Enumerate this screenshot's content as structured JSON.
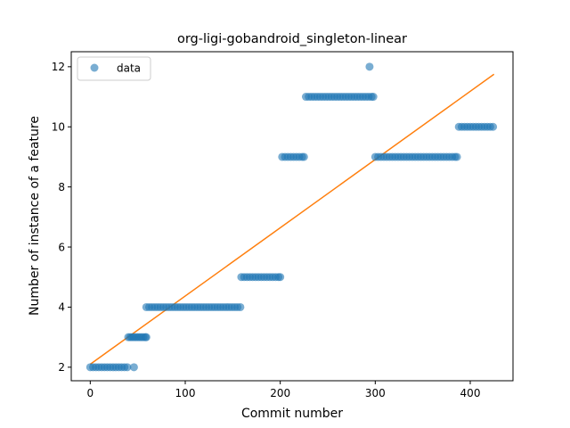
{
  "chart_data": {
    "type": "scatter",
    "title": "org-ligi-gobandroid_singleton-linear",
    "xlabel": "Commit number",
    "ylabel": "Number of instance of a feature",
    "xlim": [
      -20,
      445
    ],
    "ylim": [
      1.55,
      12.5
    ],
    "xticks": [
      0,
      100,
      200,
      300,
      400
    ],
    "yticks": [
      2,
      4,
      6,
      8,
      10,
      12
    ],
    "xtick_labels": [
      "0",
      "100",
      "200",
      "300",
      "400"
    ],
    "ytick_labels": [
      "2",
      "4",
      "6",
      "8",
      "10",
      "12"
    ],
    "legend": {
      "position": "top-left",
      "entries": [
        "data"
      ]
    },
    "colors": {
      "data": "#1f77b4",
      "fit": "#ff7f0e"
    },
    "series": [
      {
        "name": "data",
        "kind": "scatter",
        "points": [
          [
            0,
            2
          ],
          [
            3,
            2
          ],
          [
            6,
            2
          ],
          [
            9,
            2
          ],
          [
            12,
            2
          ],
          [
            15,
            2
          ],
          [
            18,
            2
          ],
          [
            21,
            2
          ],
          [
            24,
            2
          ],
          [
            27,
            2
          ],
          [
            30,
            2
          ],
          [
            33,
            2
          ],
          [
            36,
            2
          ],
          [
            39,
            2
          ],
          [
            40,
            3
          ],
          [
            42,
            3
          ],
          [
            44,
            3
          ],
          [
            46,
            3
          ],
          [
            46,
            2
          ],
          [
            48,
            3
          ],
          [
            50,
            3
          ],
          [
            52,
            3
          ],
          [
            54,
            3
          ],
          [
            56,
            3
          ],
          [
            58,
            3
          ],
          [
            59,
            3
          ],
          [
            59,
            4
          ],
          [
            62,
            4
          ],
          [
            65,
            4
          ],
          [
            68,
            4
          ],
          [
            71,
            4
          ],
          [
            74,
            4
          ],
          [
            77,
            4
          ],
          [
            80,
            4
          ],
          [
            83,
            4
          ],
          [
            86,
            4
          ],
          [
            89,
            4
          ],
          [
            92,
            4
          ],
          [
            95,
            4
          ],
          [
            98,
            4
          ],
          [
            101,
            4
          ],
          [
            104,
            4
          ],
          [
            107,
            4
          ],
          [
            110,
            4
          ],
          [
            113,
            4
          ],
          [
            116,
            4
          ],
          [
            119,
            4
          ],
          [
            122,
            4
          ],
          [
            125,
            4
          ],
          [
            128,
            4
          ],
          [
            131,
            4
          ],
          [
            134,
            4
          ],
          [
            137,
            4
          ],
          [
            140,
            4
          ],
          [
            143,
            4
          ],
          [
            146,
            4
          ],
          [
            149,
            4
          ],
          [
            152,
            4
          ],
          [
            155,
            4
          ],
          [
            158,
            4
          ],
          [
            159,
            5
          ],
          [
            162,
            5
          ],
          [
            165,
            5
          ],
          [
            168,
            5
          ],
          [
            171,
            5
          ],
          [
            174,
            5
          ],
          [
            177,
            5
          ],
          [
            180,
            5
          ],
          [
            183,
            5
          ],
          [
            186,
            5
          ],
          [
            189,
            5
          ],
          [
            192,
            5
          ],
          [
            195,
            5
          ],
          [
            198,
            5
          ],
          [
            200,
            5
          ],
          [
            202,
            9
          ],
          [
            205,
            9
          ],
          [
            208,
            9
          ],
          [
            211,
            9
          ],
          [
            214,
            9
          ],
          [
            217,
            9
          ],
          [
            220,
            9
          ],
          [
            223,
            9
          ],
          [
            225,
            9
          ],
          [
            227,
            11
          ],
          [
            230,
            11
          ],
          [
            233,
            11
          ],
          [
            236,
            11
          ],
          [
            239,
            11
          ],
          [
            242,
            11
          ],
          [
            245,
            11
          ],
          [
            248,
            11
          ],
          [
            251,
            11
          ],
          [
            254,
            11
          ],
          [
            257,
            11
          ],
          [
            260,
            11
          ],
          [
            263,
            11
          ],
          [
            266,
            11
          ],
          [
            269,
            11
          ],
          [
            272,
            11
          ],
          [
            275,
            11
          ],
          [
            278,
            11
          ],
          [
            281,
            11
          ],
          [
            284,
            11
          ],
          [
            287,
            11
          ],
          [
            290,
            11
          ],
          [
            293,
            11
          ],
          [
            296,
            11
          ],
          [
            298,
            11
          ],
          [
            294,
            12
          ],
          [
            300,
            9
          ],
          [
            303,
            9
          ],
          [
            306,
            9
          ],
          [
            309,
            9
          ],
          [
            312,
            9
          ],
          [
            315,
            9
          ],
          [
            318,
            9
          ],
          [
            321,
            9
          ],
          [
            324,
            9
          ],
          [
            327,
            9
          ],
          [
            330,
            9
          ],
          [
            333,
            9
          ],
          [
            336,
            9
          ],
          [
            339,
            9
          ],
          [
            342,
            9
          ],
          [
            345,
            9
          ],
          [
            348,
            9
          ],
          [
            351,
            9
          ],
          [
            354,
            9
          ],
          [
            357,
            9
          ],
          [
            360,
            9
          ],
          [
            363,
            9
          ],
          [
            366,
            9
          ],
          [
            369,
            9
          ],
          [
            372,
            9
          ],
          [
            375,
            9
          ],
          [
            378,
            9
          ],
          [
            381,
            9
          ],
          [
            384,
            9
          ],
          [
            386,
            9
          ],
          [
            388,
            10
          ],
          [
            391,
            10
          ],
          [
            394,
            10
          ],
          [
            397,
            10
          ],
          [
            400,
            10
          ],
          [
            403,
            10
          ],
          [
            406,
            10
          ],
          [
            409,
            10
          ],
          [
            412,
            10
          ],
          [
            415,
            10
          ],
          [
            418,
            10
          ],
          [
            421,
            10
          ],
          [
            424,
            10
          ]
        ]
      },
      {
        "kind": "line",
        "points": [
          [
            0,
            2.1
          ],
          [
            425,
            11.75
          ]
        ]
      }
    ]
  }
}
